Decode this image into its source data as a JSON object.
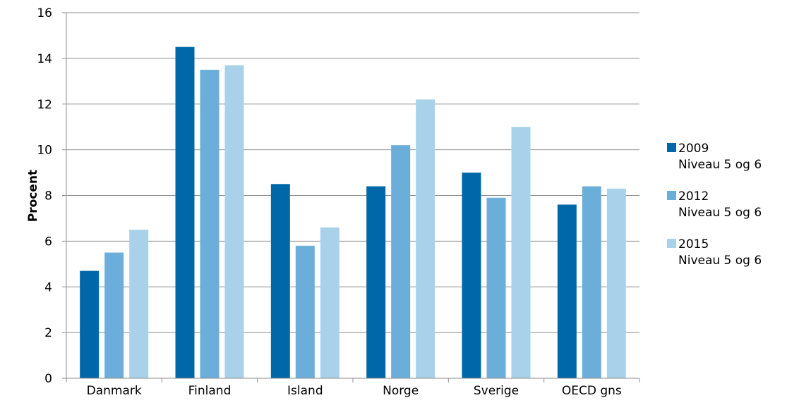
{
  "chart_data": {
    "type": "bar",
    "title": "",
    "xlabel": "",
    "ylabel": "Procent",
    "ylim": [
      0,
      16
    ],
    "yticks": [
      0,
      2,
      4,
      6,
      8,
      10,
      12,
      14,
      16
    ],
    "grid": true,
    "legend_position": "right",
    "categories": [
      "Danmark",
      "Finland",
      "Island",
      "Norge",
      "Sverige",
      "OECD gns"
    ],
    "series": [
      {
        "name": "2009",
        "subtitle": "Niveau 5 og 6",
        "color": "#0068A9",
        "values": [
          4.7,
          14.5,
          8.5,
          8.4,
          9.0,
          7.6
        ]
      },
      {
        "name": "2012",
        "subtitle": "Niveau 5 og 6",
        "color": "#6BAED9",
        "values": [
          5.5,
          13.5,
          5.8,
          10.2,
          7.9,
          8.4
        ]
      },
      {
        "name": "2015",
        "subtitle": "Niveau 5 og 6",
        "color": "#A9D2EA",
        "values": [
          6.5,
          13.7,
          6.6,
          12.2,
          11.0,
          8.3
        ]
      }
    ]
  }
}
